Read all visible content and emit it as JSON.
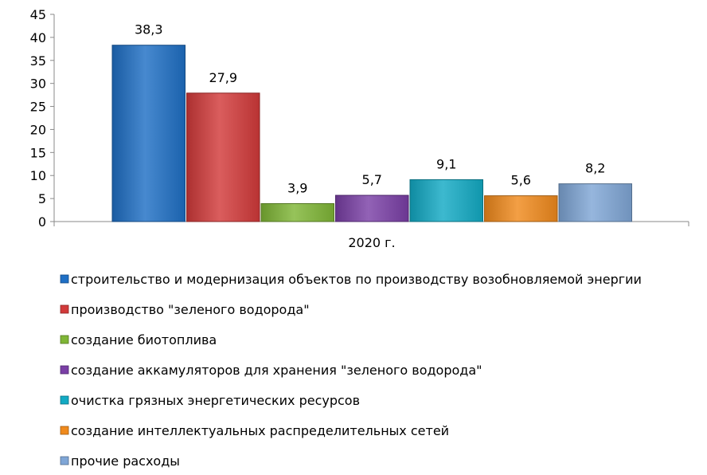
{
  "chart_data": {
    "type": "bar",
    "categories": [
      "2020 г."
    ],
    "series": [
      {
        "name": "строительство и модернизация объектов по производству возобновляемой энергии",
        "values": [
          38.3
        ],
        "label": "38,3",
        "color": "#1f6fc5"
      },
      {
        "name": "производство \"зеленого водорода\"",
        "values": [
          27.9
        ],
        "label": "27,9",
        "color": "#d23a3a"
      },
      {
        "name": "создание биотоплива",
        "values": [
          3.9
        ],
        "label": "3,9",
        "color": "#7fb636"
      },
      {
        "name": "создание аккамуляторов для хранения \"зеленого водорода\"",
        "values": [
          5.7
        ],
        "label": "5,7",
        "color": "#7a3fa6"
      },
      {
        "name": "очистка грязных энергетических ресурсов",
        "values": [
          9.1
        ],
        "label": "9,1",
        "color": "#12aac4"
      },
      {
        "name": "создание интеллектуальных распределительных сетей",
        "values": [
          5.6
        ],
        "label": "5,6",
        "color": "#f08a1c"
      },
      {
        "name": "прочие расходы",
        "values": [
          8.2
        ],
        "label": "8,2",
        "color": "#7fa6d6"
      }
    ],
    "yticks": [
      "0",
      "5",
      "10",
      "15",
      "20",
      "25",
      "30",
      "35",
      "40",
      "45"
    ],
    "ylim": [
      0,
      45
    ],
    "grid": false,
    "legend_position": "bottom"
  }
}
